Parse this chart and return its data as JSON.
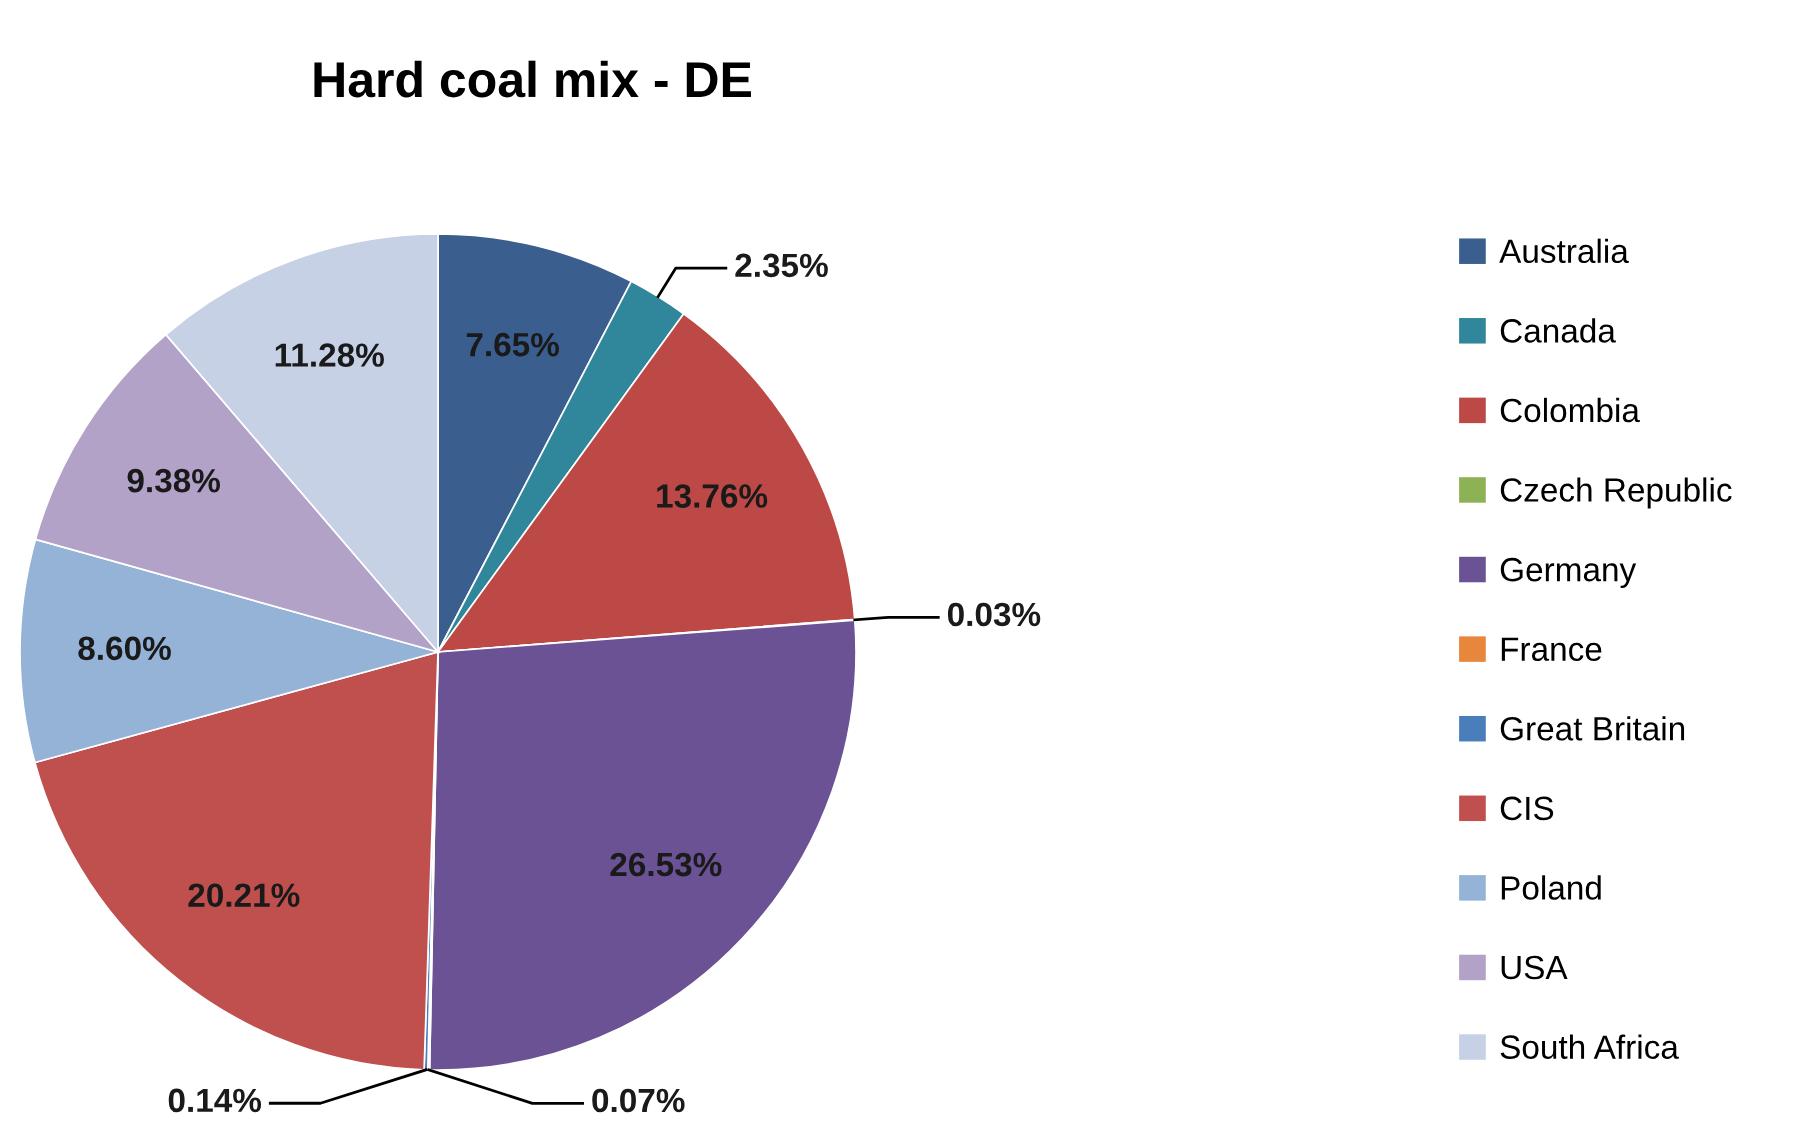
{
  "chart_data": {
    "type": "pie",
    "title": "Hard coal mix - DE",
    "categories": [
      "Australia",
      "Canada",
      "Colombia",
      "Czech Republic",
      "Germany",
      "France",
      "Great Britain",
      "CIS",
      "Poland",
      "USA",
      "South Africa"
    ],
    "values": [
      7.65,
      2.35,
      13.76,
      0.03,
      26.53,
      0.07,
      0.14,
      20.21,
      8.6,
      9.38,
      11.28
    ],
    "colors": [
      "#3A5F8F",
      "#30879B",
      "#BC4946",
      "#8DB255",
      "#6A5294",
      "#E8863B",
      "#4A7EBB",
      "#C0504D",
      "#95B3D7",
      "#B3A2C7",
      "#C6D1E6"
    ],
    "value_labels": [
      "7.65%",
      "2.35%",
      "13.76%",
      "0.03%",
      "26.53%",
      "0.07%",
      "0.14%",
      "20.21%",
      "8.60%",
      "9.38%",
      "11.28%"
    ],
    "legend": "right"
  }
}
